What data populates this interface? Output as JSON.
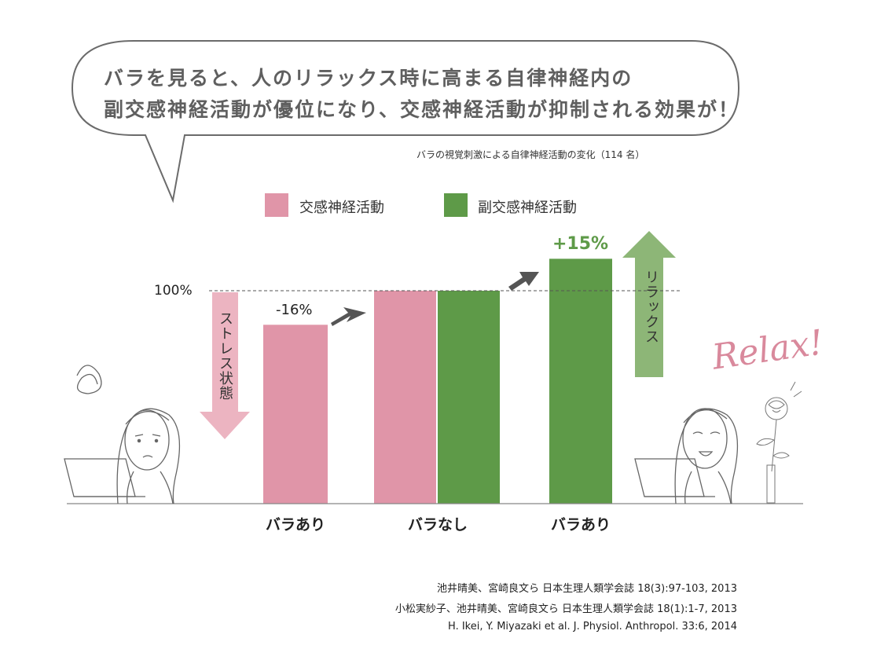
{
  "headline": {
    "line1": "バラを見ると、人のリラックス時に高まる自律神経内の",
    "line2": "副交感神経活動が優位になり、交感神経活動が抑制される効果が！"
  },
  "chart_title": "バラの視覚刺激による自律神経活動の変化（114 名）",
  "legend": {
    "sympathetic": "交感神経活動",
    "parasympathetic": "副交感神経活動"
  },
  "colors": {
    "sympathetic": "#e095a8",
    "parasympathetic": "#5e9a48",
    "pink_arrow": "#ecb4c1",
    "green_arrow": "#8db677",
    "bubble_stroke": "#6b6b6b",
    "relax_text": "#d9899c"
  },
  "annotations": {
    "baseline_label": "100%",
    "minus_label": "-16%",
    "plus_label": "+15%",
    "stress_label": "ストレス状態",
    "relax_label": "リラックス",
    "relax_script": "Relax!"
  },
  "chart_data": {
    "type": "bar",
    "categories": [
      "バラあり",
      "バラなし",
      "バラあり"
    ],
    "series": [
      {
        "name": "交感神経活動",
        "values": [
          84,
          100,
          null
        ]
      },
      {
        "name": "副交感神経活動",
        "values": [
          null,
          100,
          115
        ]
      }
    ],
    "reference_line": 100,
    "ylim": [
      0,
      125
    ],
    "grid": false,
    "legend_position": "top"
  },
  "references": [
    "池井晴美、宮崎良文ら 日本生理人類学会誌 18(3):97-103, 2013",
    "小松実紗子、池井晴美、宮崎良文ら 日本生理人類学会誌 18(1):1-7, 2013",
    "H. Ikei, Y. Miyazaki et al.  J. Physiol. Anthropol. 33:6, 2014"
  ]
}
